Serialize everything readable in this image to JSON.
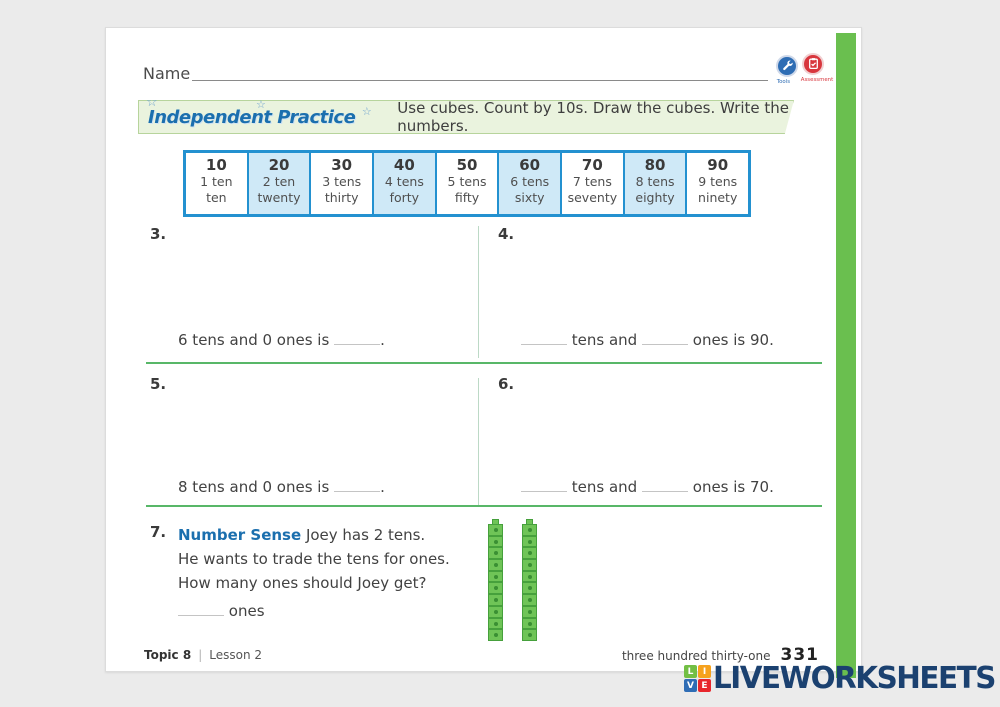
{
  "header": {
    "name_label": "Name",
    "icons": {
      "tools_label": "Tools",
      "assessment_label": "Assessment"
    }
  },
  "banner": {
    "title": "Independent Practice",
    "instruction": "Use cubes. Count by 10s. Draw the cubes. Write the numbers."
  },
  "tens_table": {
    "columns": [
      {
        "number": "10",
        "tens": "1 ten",
        "word": "ten",
        "shaded": false
      },
      {
        "number": "20",
        "tens": "2 ten",
        "word": "twenty",
        "shaded": true
      },
      {
        "number": "30",
        "tens": "3 tens",
        "word": "thirty",
        "shaded": false
      },
      {
        "number": "40",
        "tens": "4 tens",
        "word": "forty",
        "shaded": true
      },
      {
        "number": "50",
        "tens": "5 tens",
        "word": "fifty",
        "shaded": false
      },
      {
        "number": "60",
        "tens": "6 tens",
        "word": "sixty",
        "shaded": true
      },
      {
        "number": "70",
        "tens": "7 tens",
        "word": "seventy",
        "shaded": false
      },
      {
        "number": "80",
        "tens": "8 tens",
        "word": "eighty",
        "shaded": true
      },
      {
        "number": "90",
        "tens": "9 tens",
        "word": "ninety",
        "shaded": false
      }
    ]
  },
  "question3": {
    "number": "3.",
    "pre": "6 tens and 0 ones is",
    "post": "."
  },
  "question4": {
    "number": "4.",
    "mid": "tens and",
    "post": "ones is 90."
  },
  "question5": {
    "number": "5.",
    "pre": "8 tens and 0 ones is",
    "post": "."
  },
  "question6": {
    "number": "6.",
    "mid": "tens and",
    "post": "ones is 70."
  },
  "question7": {
    "number": "7.",
    "label": "Number Sense",
    "line1": "Joey has 2 tens.",
    "line2": "He wants to trade the tens for ones.",
    "line3": "How many ones should Joey get?",
    "answer_label": "ones",
    "towers": 2,
    "cubes_per_tower": 10
  },
  "footer": {
    "topic": "Topic 8",
    "lesson": "Lesson 2",
    "page_words": "three hundred thirty-one",
    "page_number": "331"
  },
  "watermark": {
    "text": "LIVEWORKSHEETS",
    "squares": [
      {
        "letter": "L",
        "color": "#72bf44"
      },
      {
        "letter": "I",
        "color": "#f6a21d"
      },
      {
        "letter": "V",
        "color": "#2f6db5"
      },
      {
        "letter": "E",
        "color": "#e8262d"
      }
    ]
  },
  "colors": {
    "accent_blue": "#1b6fae",
    "table_border": "#2391d0",
    "table_shaded_cell": "#cfe9f7",
    "banner_bg": "#eaf3de",
    "divider_green": "#58b768",
    "side_bar_green": "#6abf4f",
    "cube_green": "#6fc457",
    "logo_navy": "#1b4170",
    "tools_icon_blue": "#2e6db4",
    "assessment_icon_red": "#d8363d"
  }
}
